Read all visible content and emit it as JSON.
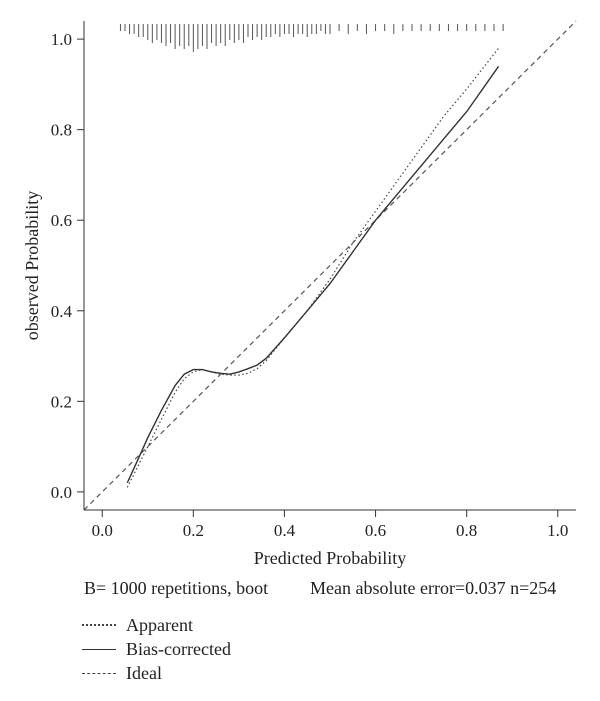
{
  "chart_data": {
    "type": "line",
    "xlabel": "Predicted Probability",
    "ylabel": "observed Probability",
    "xlim": [
      -0.04,
      1.04
    ],
    "ylim": [
      -0.04,
      1.04
    ],
    "x_ticks": [
      "0.0",
      "0.2",
      "0.4",
      "0.6",
      "0.8",
      "1.0"
    ],
    "y_ticks": [
      "0.0",
      "0.2",
      "0.4",
      "0.6",
      "0.8",
      "1.0"
    ],
    "grid": false,
    "legend_position": "bottom-left",
    "series": [
      {
        "name": "Apparent",
        "style": "dotted",
        "x": [
          0.055,
          0.08,
          0.1,
          0.13,
          0.16,
          0.18,
          0.2,
          0.22,
          0.24,
          0.26,
          0.28,
          0.3,
          0.32,
          0.34,
          0.36,
          0.4,
          0.45,
          0.5,
          0.55,
          0.6,
          0.65,
          0.7,
          0.75,
          0.8,
          0.87
        ],
        "y": [
          0.01,
          0.06,
          0.1,
          0.16,
          0.22,
          0.25,
          0.265,
          0.27,
          0.265,
          0.26,
          0.258,
          0.258,
          0.262,
          0.272,
          0.29,
          0.34,
          0.4,
          0.47,
          0.55,
          0.62,
          0.69,
          0.76,
          0.83,
          0.89,
          0.98
        ]
      },
      {
        "name": "Bias-corrected",
        "style": "solid",
        "x": [
          0.055,
          0.08,
          0.1,
          0.13,
          0.16,
          0.18,
          0.2,
          0.22,
          0.24,
          0.26,
          0.28,
          0.3,
          0.32,
          0.34,
          0.36,
          0.4,
          0.45,
          0.5,
          0.55,
          0.6,
          0.65,
          0.7,
          0.75,
          0.8,
          0.87
        ],
        "y": [
          0.02,
          0.075,
          0.12,
          0.18,
          0.235,
          0.26,
          0.27,
          0.27,
          0.265,
          0.262,
          0.26,
          0.265,
          0.272,
          0.28,
          0.295,
          0.34,
          0.4,
          0.46,
          0.53,
          0.6,
          0.66,
          0.72,
          0.78,
          0.84,
          0.94
        ]
      },
      {
        "name": "Ideal",
        "style": "dashed",
        "x": [
          -0.04,
          1.04
        ],
        "y": [
          -0.04,
          1.04
        ]
      }
    ],
    "rug": {
      "x": [
        0.04,
        0.05,
        0.06,
        0.07,
        0.08,
        0.09,
        0.1,
        0.11,
        0.12,
        0.13,
        0.14,
        0.15,
        0.16,
        0.17,
        0.18,
        0.19,
        0.2,
        0.21,
        0.22,
        0.23,
        0.24,
        0.25,
        0.26,
        0.27,
        0.28,
        0.29,
        0.3,
        0.31,
        0.32,
        0.33,
        0.34,
        0.35,
        0.36,
        0.37,
        0.38,
        0.39,
        0.4,
        0.41,
        0.42,
        0.43,
        0.44,
        0.45,
        0.46,
        0.47,
        0.48,
        0.49,
        0.5,
        0.52,
        0.54,
        0.56,
        0.58,
        0.6,
        0.62,
        0.64,
        0.66,
        0.68,
        0.7,
        0.72,
        0.74,
        0.76,
        0.78,
        0.8,
        0.82,
        0.84,
        0.86,
        0.88
      ],
      "count": [
        1,
        1,
        2,
        2,
        3,
        3,
        4,
        5,
        4,
        5,
        6,
        5,
        7,
        6,
        7,
        6,
        8,
        7,
        6,
        7,
        5,
        6,
        5,
        6,
        4,
        5,
        4,
        5,
        3,
        4,
        3,
        4,
        3,
        3,
        2,
        3,
        2,
        2,
        3,
        2,
        2,
        3,
        2,
        2,
        1,
        2,
        2,
        1,
        2,
        1,
        2,
        1,
        1,
        2,
        1,
        1,
        1,
        1,
        1,
        1,
        1,
        1,
        1,
        1,
        1,
        1
      ]
    }
  },
  "footer": {
    "repetitions_text": "B= 1000 repetitions, boot",
    "error_text": "Mean absolute error=0.037 n=254"
  },
  "legend": {
    "apparent": "Apparent",
    "bias_corrected": "Bias-corrected",
    "ideal": "Ideal"
  }
}
